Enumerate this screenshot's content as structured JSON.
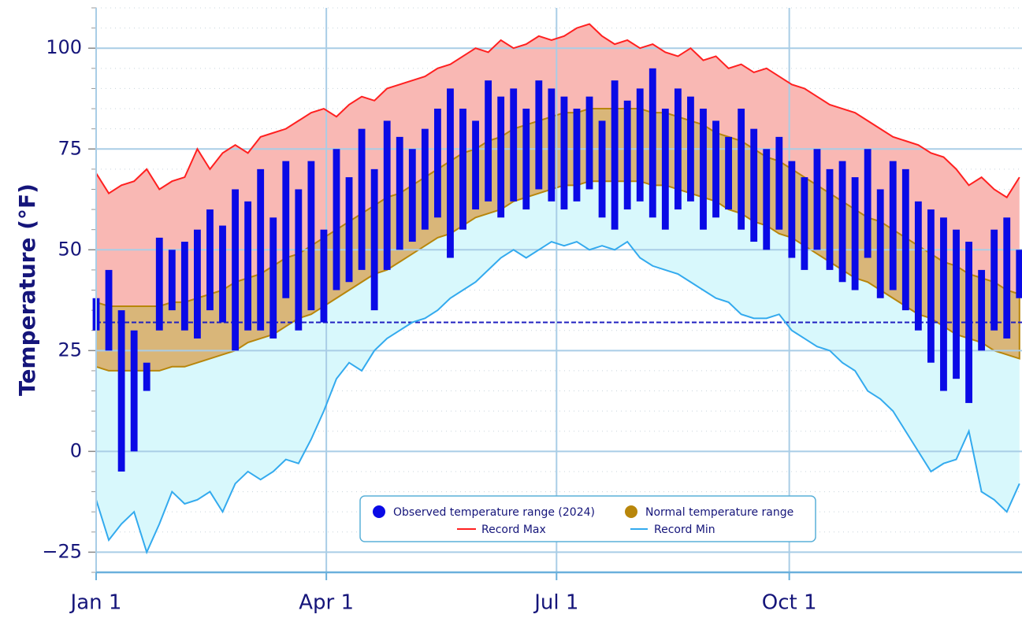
{
  "chart_data": {
    "type": "temperature-range",
    "y_label": "Temperature (°F)",
    "x": [
      0,
      5,
      10,
      15,
      20,
      25,
      30,
      35,
      40,
      45,
      50,
      55,
      60,
      65,
      70,
      75,
      80,
      85,
      90,
      95,
      100,
      105,
      110,
      115,
      120,
      125,
      130,
      135,
      140,
      145,
      150,
      155,
      160,
      165,
      170,
      175,
      180,
      185,
      190,
      195,
      200,
      205,
      210,
      215,
      220,
      225,
      230,
      235,
      240,
      245,
      250,
      255,
      260,
      265,
      270,
      275,
      280,
      285,
      290,
      295,
      300,
      305,
      310,
      315,
      320,
      325,
      330,
      335,
      340,
      345,
      350,
      355,
      360,
      365
    ],
    "xlim": [
      0,
      366
    ],
    "ylim": [
      -30,
      110
    ],
    "xticks": [
      {
        "value": 0,
        "label": "Jan 1"
      },
      {
        "value": 91,
        "label": "Apr 1"
      },
      {
        "value": 182,
        "label": "Jul 1"
      },
      {
        "value": 274,
        "label": "Oct 1"
      }
    ],
    "yticks": [
      {
        "value": -25,
        "label": "−25"
      },
      0,
      25,
      50,
      75,
      100
    ],
    "minor_yticks": [
      -30,
      -20,
      -15,
      -10,
      -5,
      5,
      10,
      15,
      20,
      30,
      35,
      40,
      45,
      55,
      60,
      65,
      70,
      80,
      85,
      90,
      95,
      105,
      110
    ],
    "grid": true,
    "freezing_line": 32,
    "series": [
      {
        "name": "Observed temperature range (2024)",
        "color": "#0a0ae6",
        "low": [
          30,
          25,
          -5,
          0,
          15,
          30,
          35,
          30,
          28,
          35,
          32,
          25,
          30,
          30,
          28,
          38,
          30,
          35,
          32,
          40,
          42,
          45,
          35,
          45,
          50,
          52,
          55,
          58,
          48,
          55,
          60,
          62,
          58,
          62,
          60,
          65,
          62,
          60,
          62,
          65,
          58,
          55,
          60,
          62,
          58,
          55,
          60,
          62,
          55,
          58,
          60,
          55,
          52,
          50,
          55,
          48,
          45,
          50,
          45,
          42,
          40,
          48,
          38,
          40,
          35,
          30,
          22,
          15,
          18,
          12,
          25,
          30,
          28,
          38
        ],
        "high": [
          38,
          45,
          35,
          30,
          22,
          53,
          50,
          52,
          55,
          60,
          56,
          65,
          62,
          70,
          58,
          72,
          65,
          72,
          55,
          75,
          68,
          80,
          70,
          82,
          78,
          75,
          80,
          85,
          90,
          85,
          82,
          92,
          88,
          90,
          85,
          92,
          90,
          88,
          85,
          88,
          82,
          92,
          87,
          90,
          95,
          85,
          90,
          88,
          85,
          82,
          78,
          85,
          80,
          75,
          78,
          72,
          68,
          75,
          70,
          72,
          68,
          75,
          65,
          72,
          70,
          62,
          60,
          58,
          55,
          52,
          45,
          55,
          58,
          50
        ]
      },
      {
        "name": "Normal temperature range",
        "color": "#b8860b",
        "fill": "#d9b679",
        "low": [
          21,
          20,
          20,
          20,
          20,
          20,
          21,
          21,
          22,
          23,
          24,
          25,
          27,
          28,
          29,
          31,
          33,
          34,
          36,
          38,
          40,
          42,
          44,
          45,
          47,
          49,
          51,
          53,
          54,
          56,
          58,
          59,
          60,
          62,
          63,
          64,
          65,
          66,
          66,
          67,
          67,
          67,
          67,
          67,
          66,
          66,
          65,
          64,
          63,
          62,
          60,
          59,
          57,
          56,
          54,
          53,
          51,
          49,
          47,
          45,
          43,
          42,
          40,
          38,
          36,
          34,
          33,
          31,
          29,
          28,
          27,
          25,
          24,
          23
        ],
        "high": [
          37,
          36,
          36,
          36,
          36,
          36,
          37,
          37,
          38,
          39,
          40,
          42,
          43,
          44,
          46,
          48,
          49,
          51,
          53,
          55,
          57,
          59,
          61,
          63,
          64,
          66,
          68,
          70,
          72,
          74,
          75,
          77,
          78,
          80,
          81,
          82,
          83,
          84,
          84,
          85,
          85,
          85,
          85,
          85,
          84,
          84,
          83,
          82,
          81,
          79,
          78,
          77,
          75,
          73,
          72,
          70,
          68,
          66,
          64,
          62,
          60,
          58,
          57,
          55,
          53,
          51,
          49,
          47,
          46,
          44,
          43,
          42,
          40,
          39
        ]
      },
      {
        "name": "Record Max",
        "color": "#ff2020",
        "fill": "#f9b8b4",
        "values": [
          69,
          64,
          66,
          67,
          70,
          65,
          67,
          68,
          75,
          70,
          74,
          76,
          74,
          78,
          79,
          80,
          82,
          84,
          85,
          83,
          86,
          88,
          87,
          90,
          91,
          92,
          93,
          95,
          96,
          98,
          100,
          99,
          102,
          100,
          101,
          103,
          102,
          103,
          105,
          106,
          103,
          101,
          102,
          100,
          101,
          99,
          98,
          100,
          97,
          98,
          95,
          96,
          94,
          95,
          93,
          91,
          90,
          88,
          86,
          85,
          84,
          82,
          80,
          78,
          77,
          76,
          74,
          73,
          70,
          66,
          68,
          65,
          63,
          68
        ]
      },
      {
        "name": "Record Min",
        "color": "#33aaee",
        "fill": "#d8f8fc",
        "values": [
          -12,
          -22,
          -18,
          -15,
          -25,
          -18,
          -10,
          -13,
          -12,
          -10,
          -15,
          -8,
          -5,
          -7,
          -5,
          -2,
          -3,
          3,
          10,
          18,
          22,
          20,
          25,
          28,
          30,
          32,
          33,
          35,
          38,
          40,
          42,
          45,
          48,
          50,
          48,
          50,
          52,
          51,
          52,
          50,
          51,
          50,
          52,
          48,
          46,
          45,
          44,
          42,
          40,
          38,
          37,
          34,
          33,
          33,
          34,
          30,
          28,
          26,
          25,
          22,
          20,
          15,
          13,
          10,
          5,
          0,
          -5,
          -3,
          -2,
          5,
          -10,
          -12,
          -15,
          -8
        ]
      }
    ]
  }
}
